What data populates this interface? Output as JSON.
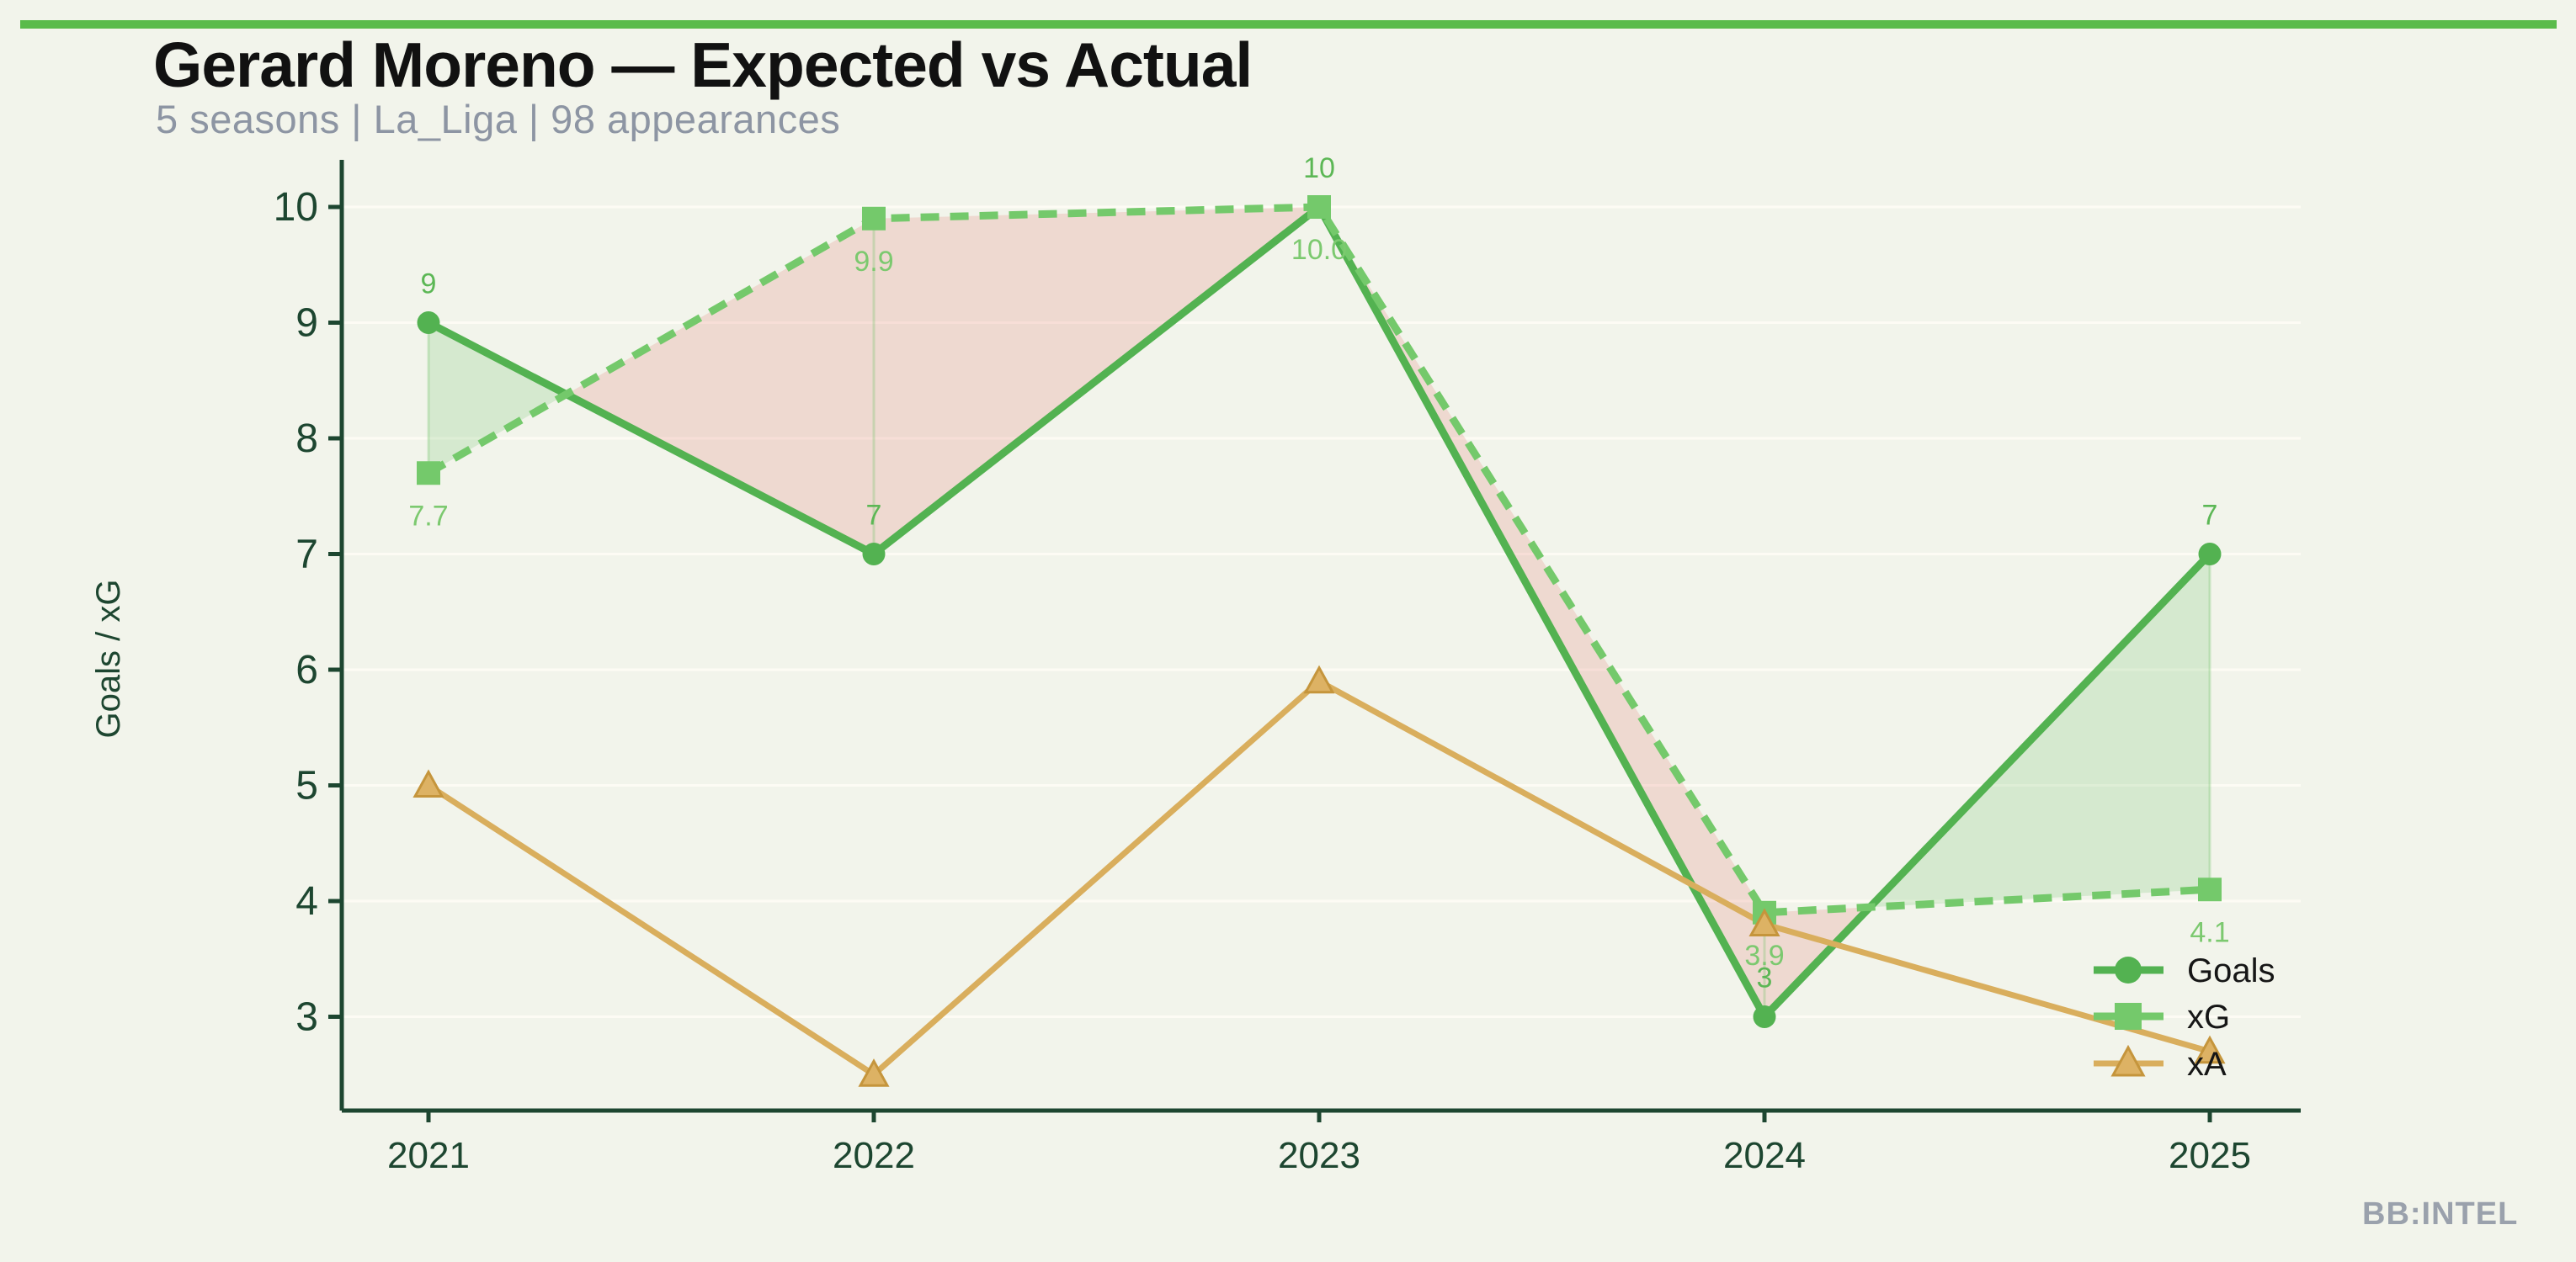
{
  "header": {
    "title": "Gerard Moreno — Expected vs Actual",
    "subtitle": "5 seasons | La_Liga | 98 appearances"
  },
  "watermark": "BB:INTEL",
  "colors": {
    "background": "#f2f4eb",
    "topbar": "#5abb4b",
    "title": "#111111",
    "subtitle": "#8d95a3",
    "axis": "#1d4630",
    "tick_labels": "#1d4630",
    "goals_green": "#53b251",
    "xg_green": "#74c96b",
    "xa_tan": "#d9ae5d",
    "xa_tan_edge": "#c5953c",
    "fill_overperform": "rgba(101,190,94,0.20)",
    "fill_underperform": "rgba(227,110,100,0.20)",
    "gridline": "rgba(255,252,246,0.85)",
    "watermark": "#9aa1ac",
    "legend_text": "#161616",
    "goals_label": "#5cb755",
    "xg_label": "#7cc96f"
  },
  "chart_data": {
    "type": "line",
    "title": "Gerard Moreno — Expected vs Actual",
    "subtitle": "5 seasons | La_Liga | 98 appearances",
    "xlabel": "",
    "ylabel": "Goals / xG",
    "x": [
      "2021",
      "2022",
      "2023",
      "2024",
      "2025"
    ],
    "yticks": [
      3,
      4,
      5,
      6,
      7,
      8,
      9,
      10
    ],
    "ylim": [
      2.2,
      10.6
    ],
    "grid": true,
    "legend_position": "lower right",
    "series": [
      {
        "name": "Goals",
        "marker": "circle",
        "line": "solid",
        "color": "#53b251",
        "values": [
          9,
          7,
          10,
          3,
          7
        ],
        "point_labels": [
          "9",
          "7",
          "10",
          "3",
          "7"
        ],
        "label_side": "above"
      },
      {
        "name": "xG",
        "marker": "square",
        "line": "dashed",
        "color": "#74c96b",
        "values": [
          7.7,
          9.9,
          10.0,
          3.9,
          4.1
        ],
        "point_labels": [
          "7.7",
          "9.9",
          "10.0",
          "3.9",
          "4.1"
        ],
        "label_side": "below"
      },
      {
        "name": "xA",
        "marker": "triangle",
        "line": "solid",
        "color": "#d9ae5d",
        "values": [
          5.0,
          2.5,
          5.9,
          3.8,
          2.7
        ],
        "point_labels": [],
        "label_side": "none"
      }
    ],
    "fill_between": {
      "upper": "Goals",
      "lower": "xG",
      "positive_color": "rgba(101,190,94,0.20)",
      "negative_color": "rgba(227,110,100,0.20)"
    }
  }
}
